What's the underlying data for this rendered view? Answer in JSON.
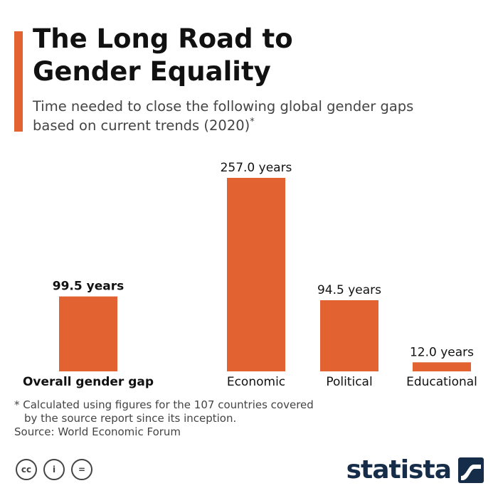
{
  "header": {
    "title_lines": [
      "The Long Road to",
      "Gender Equality"
    ],
    "subtitle_lines": [
      "Time needed to close the following global gender gaps",
      "based on current trends (2020)"
    ],
    "subtitle_mark": "*"
  },
  "chart_data": {
    "type": "bar",
    "categories": [
      "Overall gender gap",
      "Economic",
      "Political",
      "Educational"
    ],
    "values": [
      99.5,
      257.0,
      94.5,
      12.0
    ],
    "value_labels": [
      "99.5 years",
      "257.0 years",
      "94.5 years",
      "12.0 years"
    ],
    "emphasized_category": "Overall gender gap",
    "unit": "years",
    "bar_color": "#e26231",
    "ylim": [
      0,
      257.0
    ],
    "grid": false,
    "legend": "none"
  },
  "footer": {
    "footnote_lines": [
      "* Calculated using figures for the 107 countries covered",
      "by the source report since its inception."
    ],
    "source": "Source: World Economic Forum",
    "license_icons": [
      "creative-commons-icon",
      "attribution-icon",
      "no-derivatives-icon"
    ],
    "license_glyphs": [
      "cc",
      "i",
      "="
    ],
    "brand": "statista"
  }
}
